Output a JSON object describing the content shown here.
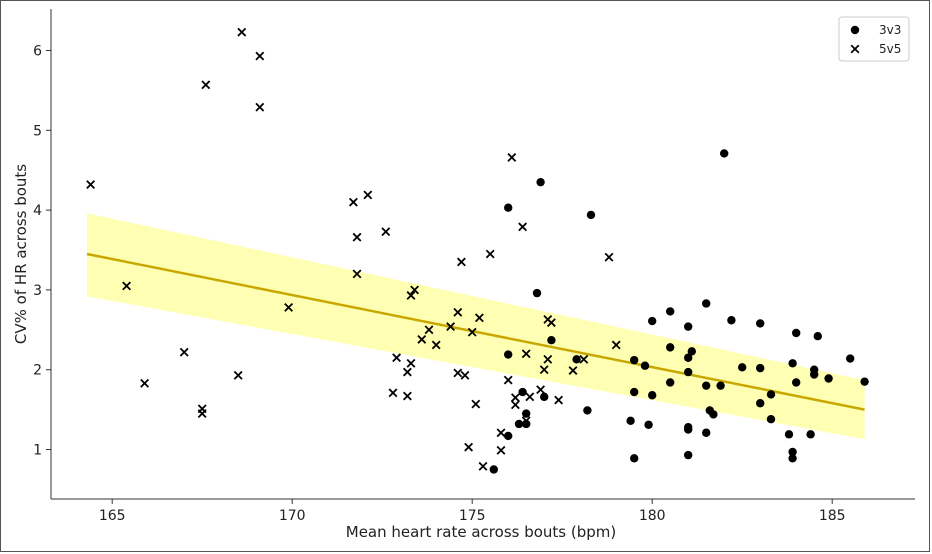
{
  "chart_data": {
    "type": "scatter",
    "xlabel": "Mean heart rate across bouts (bpm)",
    "ylabel": "CV% of HR across bouts",
    "xlim": [
      163.3,
      187.3
    ],
    "ylim": [
      0.38,
      6.52
    ],
    "xticks": [
      165,
      170,
      175,
      180,
      185
    ],
    "yticks": [
      1,
      2,
      3,
      4,
      5,
      6
    ],
    "grid": false,
    "legend_position": "top-right",
    "series": [
      {
        "name": "3v3",
        "marker": "circle",
        "color": "#000000",
        "points": [
          [
            175.6,
            0.75
          ],
          [
            176.0,
            1.17
          ],
          [
            176.0,
            2.19
          ],
          [
            176.0,
            4.03
          ],
          [
            176.3,
            1.32
          ],
          [
            176.4,
            1.72
          ],
          [
            176.5,
            1.45
          ],
          [
            176.5,
            1.32
          ],
          [
            176.8,
            2.96
          ],
          [
            176.9,
            4.35
          ],
          [
            177.0,
            1.66
          ],
          [
            177.2,
            2.37
          ],
          [
            177.9,
            2.13
          ],
          [
            178.2,
            1.49
          ],
          [
            178.3,
            3.94
          ],
          [
            179.4,
            1.36
          ],
          [
            179.5,
            0.89
          ],
          [
            179.5,
            1.72
          ],
          [
            179.5,
            2.12
          ],
          [
            179.8,
            2.05
          ],
          [
            179.9,
            1.31
          ],
          [
            180.0,
            1.68
          ],
          [
            180.0,
            2.61
          ],
          [
            180.5,
            2.73
          ],
          [
            180.5,
            2.28
          ],
          [
            180.5,
            1.84
          ],
          [
            181.0,
            0.93
          ],
          [
            181.0,
            1.25
          ],
          [
            181.0,
            1.28
          ],
          [
            181.0,
            1.97
          ],
          [
            181.0,
            2.54
          ],
          [
            181.0,
            2.15
          ],
          [
            181.1,
            2.23
          ],
          [
            181.5,
            1.21
          ],
          [
            181.5,
            1.8
          ],
          [
            181.5,
            2.83
          ],
          [
            181.6,
            1.49
          ],
          [
            181.7,
            1.44
          ],
          [
            181.9,
            1.8
          ],
          [
            182.0,
            4.71
          ],
          [
            182.2,
            2.62
          ],
          [
            182.5,
            2.03
          ],
          [
            183.0,
            1.58
          ],
          [
            183.0,
            2.02
          ],
          [
            183.0,
            2.58
          ],
          [
            183.3,
            1.69
          ],
          [
            183.3,
            1.38
          ],
          [
            183.8,
            1.19
          ],
          [
            183.9,
            0.89
          ],
          [
            183.9,
            0.97
          ],
          [
            183.9,
            2.08
          ],
          [
            184.0,
            1.84
          ],
          [
            184.0,
            2.46
          ],
          [
            184.4,
            1.19
          ],
          [
            184.5,
            1.94
          ],
          [
            184.5,
            2.0
          ],
          [
            184.6,
            2.42
          ],
          [
            184.9,
            1.89
          ],
          [
            185.5,
            2.14
          ],
          [
            185.9,
            1.85
          ]
        ]
      },
      {
        "name": "5v5",
        "marker": "x",
        "color": "#000000",
        "points": [
          [
            164.4,
            4.32
          ],
          [
            165.4,
            3.05
          ],
          [
            165.9,
            1.83
          ],
          [
            167.0,
            2.22
          ],
          [
            167.5,
            1.51
          ],
          [
            167.5,
            1.45
          ],
          [
            167.6,
            5.57
          ],
          [
            168.5,
            1.93
          ],
          [
            168.6,
            6.23
          ],
          [
            169.1,
            5.93
          ],
          [
            169.1,
            5.29
          ],
          [
            169.9,
            2.78
          ],
          [
            171.7,
            4.1
          ],
          [
            171.8,
            3.66
          ],
          [
            171.8,
            3.2
          ],
          [
            172.1,
            4.19
          ],
          [
            172.6,
            3.73
          ],
          [
            172.8,
            1.71
          ],
          [
            172.9,
            2.15
          ],
          [
            173.2,
            1.67
          ],
          [
            173.2,
            1.97
          ],
          [
            173.3,
            2.08
          ],
          [
            173.3,
            2.93
          ],
          [
            173.4,
            3.0
          ],
          [
            173.6,
            2.38
          ],
          [
            173.8,
            2.5
          ],
          [
            174.0,
            2.31
          ],
          [
            174.4,
            2.54
          ],
          [
            174.6,
            2.72
          ],
          [
            174.6,
            1.96
          ],
          [
            174.7,
            3.35
          ],
          [
            174.8,
            1.93
          ],
          [
            174.9,
            1.03
          ],
          [
            175.0,
            2.47
          ],
          [
            175.1,
            1.57
          ],
          [
            175.2,
            2.65
          ],
          [
            175.3,
            0.79
          ],
          [
            175.5,
            3.45
          ],
          [
            175.8,
            1.21
          ],
          [
            175.8,
            0.99
          ],
          [
            176.0,
            1.87
          ],
          [
            176.1,
            4.66
          ],
          [
            176.2,
            1.65
          ],
          [
            176.2,
            1.56
          ],
          [
            176.4,
            3.79
          ],
          [
            176.5,
            1.36
          ],
          [
            176.5,
            2.2
          ],
          [
            176.6,
            1.66
          ],
          [
            176.9,
            1.75
          ],
          [
            177.0,
            2.0
          ],
          [
            177.1,
            2.13
          ],
          [
            177.1,
            2.63
          ],
          [
            177.2,
            2.59
          ],
          [
            177.4,
            1.62
          ],
          [
            177.8,
            1.99
          ],
          [
            178.1,
            2.13
          ],
          [
            178.8,
            3.41
          ],
          [
            179.0,
            2.31
          ]
        ]
      }
    ],
    "regression": {
      "x": [
        164.3,
        185.9
      ],
      "y": [
        3.45,
        1.5
      ],
      "ci_upper": [
        3.96,
        1.87
      ],
      "ci_lower": [
        2.92,
        1.13
      ],
      "line_color": "#c8a800",
      "band_color": "#ffff99"
    }
  }
}
